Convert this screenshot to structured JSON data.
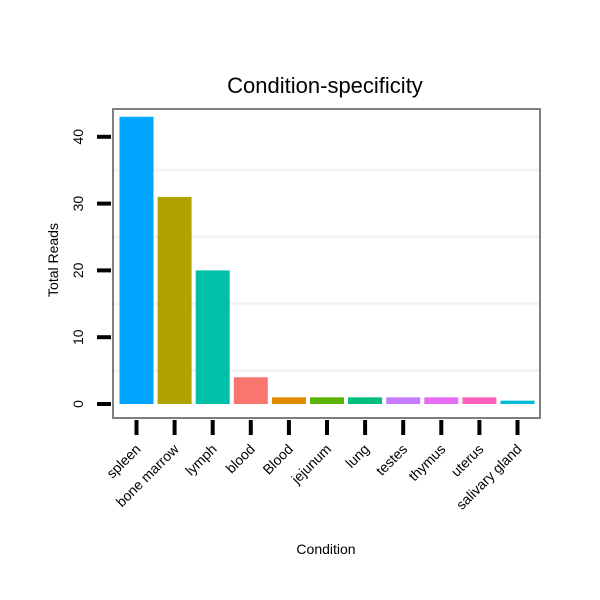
{
  "chart_data": {
    "type": "bar",
    "title": "Condition-specificity",
    "xlabel": "Condition",
    "ylabel": "Total Reads",
    "categories": [
      "spleen",
      "bone marrow",
      "lymph",
      "blood",
      "Blood",
      "jejunum",
      "lung",
      "testes",
      "thymus",
      "uterus",
      "salivary gland"
    ],
    "values": [
      43,
      31,
      20,
      4,
      1,
      1,
      1,
      1,
      1,
      1,
      0.5
    ],
    "colors": [
      "#00a5ff",
      "#b0a200",
      "#00c1a7",
      "#f8766d",
      "#e08b00",
      "#5bb300",
      "#00bf7d",
      "#c77cff",
      "#e76bf3",
      "#ff62bc",
      "#00bcd8"
    ],
    "ylim": [
      0,
      46
    ],
    "yticks": [
      0,
      10,
      20,
      30,
      40
    ],
    "grid": true,
    "legend": "none"
  }
}
